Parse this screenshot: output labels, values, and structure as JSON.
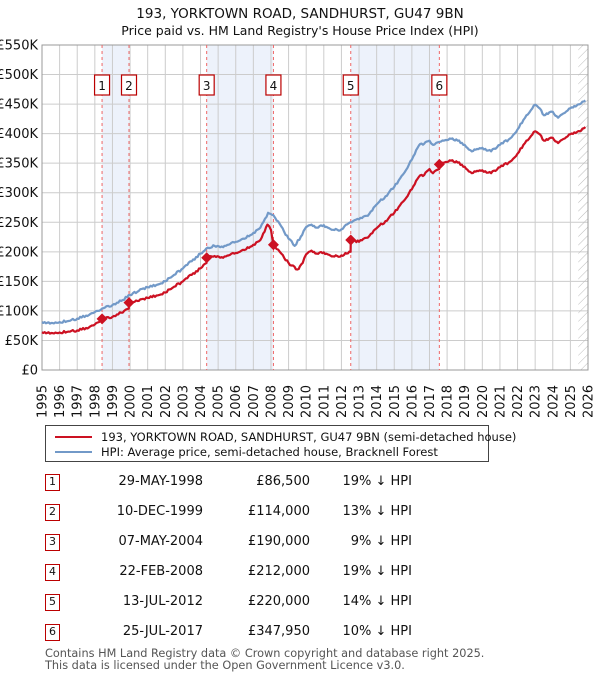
{
  "title": "193, YORKTOWN ROAD, SANDHURST, GU47 9BN",
  "subtitle": "Price paid vs. HM Land Registry's House Price Index (HPI)",
  "legend": {
    "property": {
      "label": "193, YORKTOWN ROAD, SANDHURST, GU47 9BN (semi-detached house)",
      "color": "#cc1122"
    },
    "hpi": {
      "label": "HPI: Average price, semi-detached house, Bracknell Forest",
      "color": "#7299c8"
    }
  },
  "sales": [
    {
      "num": "1",
      "date": "29-MAY-1998",
      "price": "£86,500",
      "pct": "19% ↓ HPI",
      "year": 1998.41,
      "value": 86.5
    },
    {
      "num": "2",
      "date": "10-DEC-1999",
      "price": "£114,000",
      "pct": "13% ↓ HPI",
      "year": 1999.94,
      "value": 114
    },
    {
      "num": "3",
      "date": "07-MAY-2004",
      "price": "£190,000",
      "pct": "9% ↓ HPI",
      "year": 2004.35,
      "value": 190
    },
    {
      "num": "4",
      "date": "22-FEB-2008",
      "price": "£212,000",
      "pct": "19% ↓ HPI",
      "year": 2008.14,
      "value": 212
    },
    {
      "num": "5",
      "date": "13-JUL-2012",
      "price": "£220,000",
      "pct": "14% ↓ HPI",
      "year": 2012.53,
      "value": 220
    },
    {
      "num": "6",
      "date": "25-JUL-2017",
      "price": "£347,950",
      "pct": "10% ↓ HPI",
      "year": 2017.56,
      "value": 347.95
    }
  ],
  "footer": {
    "line1": "Contains HM Land Registry data © Crown copyright and database right 2025.",
    "line2": "This data is licensed under the Open Government Licence v3.0."
  },
  "chart_data": {
    "type": "line",
    "title": "193, YORKTOWN ROAD, SANDHURST, GU47 9BN — Price paid vs. HPI",
    "units": "GBP thousands",
    "xlim": [
      1995,
      2026
    ],
    "ylim": [
      0,
      550
    ],
    "x_ticks": [
      1995,
      1996,
      1997,
      1998,
      1999,
      2000,
      2001,
      2002,
      2003,
      2004,
      2005,
      2006,
      2007,
      2008,
      2009,
      2010,
      2011,
      2012,
      2013,
      2014,
      2015,
      2016,
      2017,
      2018,
      2019,
      2020,
      2021,
      2022,
      2023,
      2024,
      2025,
      2026
    ],
    "y_ticks": [
      0,
      50,
      100,
      150,
      200,
      250,
      300,
      350,
      400,
      450,
      500,
      550
    ],
    "y_tick_labels": [
      "£0",
      "£50K",
      "£100K",
      "£150K",
      "£200K",
      "£250K",
      "£300K",
      "£350K",
      "£400K",
      "£450K",
      "£500K",
      "£550K"
    ],
    "grid": true,
    "legend_position": "bottom",
    "ownership_bands": [
      [
        1998.41,
        1999.94
      ],
      [
        2004.35,
        2008.14
      ],
      [
        2012.53,
        2017.56
      ]
    ],
    "future_hatch_from": 2025.45,
    "colors": {
      "property": "#cc1122",
      "hpi": "#7299c8",
      "band": "#edf2fb",
      "dashed": "#ee6666",
      "grid": "#cccccc",
      "border": "#999999",
      "badge_border": "#bb0000",
      "hatch": "#bbbbbb"
    },
    "series": [
      {
        "name": "HPI: Average price, semi-detached house, Bracknell Forest",
        "color": "#7299c8",
        "points": [
          [
            1995.0,
            81
          ],
          [
            1995.3,
            80
          ],
          [
            1995.6,
            79.5
          ],
          [
            1996.0,
            81
          ],
          [
            1996.5,
            83
          ],
          [
            1997.0,
            87
          ],
          [
            1997.5,
            92
          ],
          [
            1998.0,
            98
          ],
          [
            1998.41,
            104
          ],
          [
            1999.0,
            110
          ],
          [
            1999.5,
            117
          ],
          [
            2000.0,
            127
          ],
          [
            2000.5,
            134
          ],
          [
            2001.0,
            140
          ],
          [
            2001.5,
            144
          ],
          [
            2002.0,
            150
          ],
          [
            2002.5,
            161
          ],
          [
            2003.0,
            172
          ],
          [
            2003.5,
            184
          ],
          [
            2004.0,
            197
          ],
          [
            2004.4,
            207
          ],
          [
            2004.8,
            210
          ],
          [
            2005.2,
            209
          ],
          [
            2005.6,
            212
          ],
          [
            2006.0,
            217
          ],
          [
            2006.5,
            222
          ],
          [
            2007.0,
            232
          ],
          [
            2007.4,
            241
          ],
          [
            2007.84,
            266
          ],
          [
            2008.14,
            262
          ],
          [
            2008.5,
            247
          ],
          [
            2009.0,
            222
          ],
          [
            2009.35,
            210
          ],
          [
            2009.7,
            226
          ],
          [
            2010.0,
            242
          ],
          [
            2010.3,
            246
          ],
          [
            2010.6,
            241
          ],
          [
            2011.0,
            245
          ],
          [
            2011.3,
            240
          ],
          [
            2011.6,
            237
          ],
          [
            2012.0,
            238
          ],
          [
            2012.5,
            250
          ],
          [
            2013.0,
            255
          ],
          [
            2013.5,
            261
          ],
          [
            2014.0,
            280
          ],
          [
            2014.5,
            294
          ],
          [
            2015.0,
            310
          ],
          [
            2015.5,
            331
          ],
          [
            2016.0,
            356
          ],
          [
            2016.4,
            380
          ],
          [
            2016.7,
            383
          ],
          [
            2017.0,
            388
          ],
          [
            2017.2,
            381
          ],
          [
            2017.56,
            386
          ],
          [
            2018.0,
            389
          ],
          [
            2018.3,
            392
          ],
          [
            2018.6,
            388
          ],
          [
            2019.0,
            381
          ],
          [
            2019.4,
            370
          ],
          [
            2019.7,
            374
          ],
          [
            2020.0,
            376
          ],
          [
            2020.5,
            370
          ],
          [
            2021.0,
            381
          ],
          [
            2021.5,
            390
          ],
          [
            2022.0,
            407
          ],
          [
            2022.5,
            431
          ],
          [
            2023.0,
            449
          ],
          [
            2023.2,
            444
          ],
          [
            2023.5,
            431
          ],
          [
            2023.8,
            436
          ],
          [
            2024.0,
            437
          ],
          [
            2024.3,
            427
          ],
          [
            2024.6,
            434
          ],
          [
            2025.0,
            443
          ],
          [
            2025.3,
            446
          ],
          [
            2025.6,
            451
          ],
          [
            2025.85,
            456
          ]
        ]
      },
      {
        "name": "193, YORKTOWN ROAD, SANDHURST, GU47 9BN (semi-detached house)",
        "color": "#cc1122",
        "points": [
          [
            1995.0,
            64
          ],
          [
            1995.3,
            63
          ],
          [
            1995.6,
            62.5
          ],
          [
            1996.0,
            63.5
          ],
          [
            1996.5,
            65
          ],
          [
            1997.0,
            67
          ],
          [
            1997.5,
            71
          ],
          [
            1998.0,
            77
          ],
          [
            1998.41,
            86.5
          ],
          [
            1999.0,
            90
          ],
          [
            1999.5,
            97
          ],
          [
            1999.93,
            104
          ],
          [
            1999.94,
            114
          ],
          [
            2000.5,
            117
          ],
          [
            2001.0,
            122
          ],
          [
            2001.5,
            126
          ],
          [
            2002.0,
            131
          ],
          [
            2002.5,
            141
          ],
          [
            2003.0,
            150
          ],
          [
            2003.5,
            161
          ],
          [
            2004.0,
            172
          ],
          [
            2004.34,
            181
          ],
          [
            2004.35,
            190
          ],
          [
            2004.8,
            193
          ],
          [
            2005.2,
            191
          ],
          [
            2005.6,
            194
          ],
          [
            2006.0,
            198
          ],
          [
            2006.5,
            203
          ],
          [
            2007.0,
            212
          ],
          [
            2007.4,
            220
          ],
          [
            2007.8,
            246
          ],
          [
            2008.0,
            237
          ],
          [
            2008.14,
            212
          ],
          [
            2008.5,
            200
          ],
          [
            2009.0,
            181
          ],
          [
            2009.5,
            170
          ],
          [
            2009.8,
            181
          ],
          [
            2010.0,
            196
          ],
          [
            2010.3,
            202
          ],
          [
            2010.6,
            197
          ],
          [
            2011.0,
            199
          ],
          [
            2011.3,
            195
          ],
          [
            2011.6,
            192
          ],
          [
            2012.0,
            194
          ],
          [
            2012.3,
            197
          ],
          [
            2012.52,
            200
          ],
          [
            2012.53,
            220
          ],
          [
            2013.0,
            217
          ],
          [
            2013.5,
            224
          ],
          [
            2014.0,
            240
          ],
          [
            2014.5,
            252
          ],
          [
            2015.0,
            266
          ],
          [
            2015.5,
            285
          ],
          [
            2016.0,
            306
          ],
          [
            2016.4,
            327
          ],
          [
            2016.7,
            330
          ],
          [
            2017.0,
            340
          ],
          [
            2017.2,
            333
          ],
          [
            2017.55,
            340
          ],
          [
            2017.56,
            347.95
          ],
          [
            2018.0,
            352
          ],
          [
            2018.3,
            355
          ],
          [
            2018.6,
            351
          ],
          [
            2019.0,
            344
          ],
          [
            2019.4,
            333
          ],
          [
            2019.7,
            337
          ],
          [
            2020.0,
            338
          ],
          [
            2020.5,
            333
          ],
          [
            2021.0,
            343
          ],
          [
            2021.5,
            351
          ],
          [
            2022.0,
            366
          ],
          [
            2022.5,
            388
          ],
          [
            2023.0,
            404
          ],
          [
            2023.2,
            400
          ],
          [
            2023.5,
            388
          ],
          [
            2023.8,
            392
          ],
          [
            2024.0,
            393
          ],
          [
            2024.3,
            384
          ],
          [
            2024.6,
            391
          ],
          [
            2025.0,
            399
          ],
          [
            2025.3,
            401
          ],
          [
            2025.6,
            405
          ],
          [
            2025.85,
            411
          ]
        ]
      }
    ],
    "sale_markers": [
      [
        1998.41,
        86.5
      ],
      [
        1999.94,
        114
      ],
      [
        2004.35,
        190
      ],
      [
        2008.14,
        212
      ],
      [
        2012.53,
        220
      ],
      [
        2017.56,
        347.95
      ]
    ]
  }
}
